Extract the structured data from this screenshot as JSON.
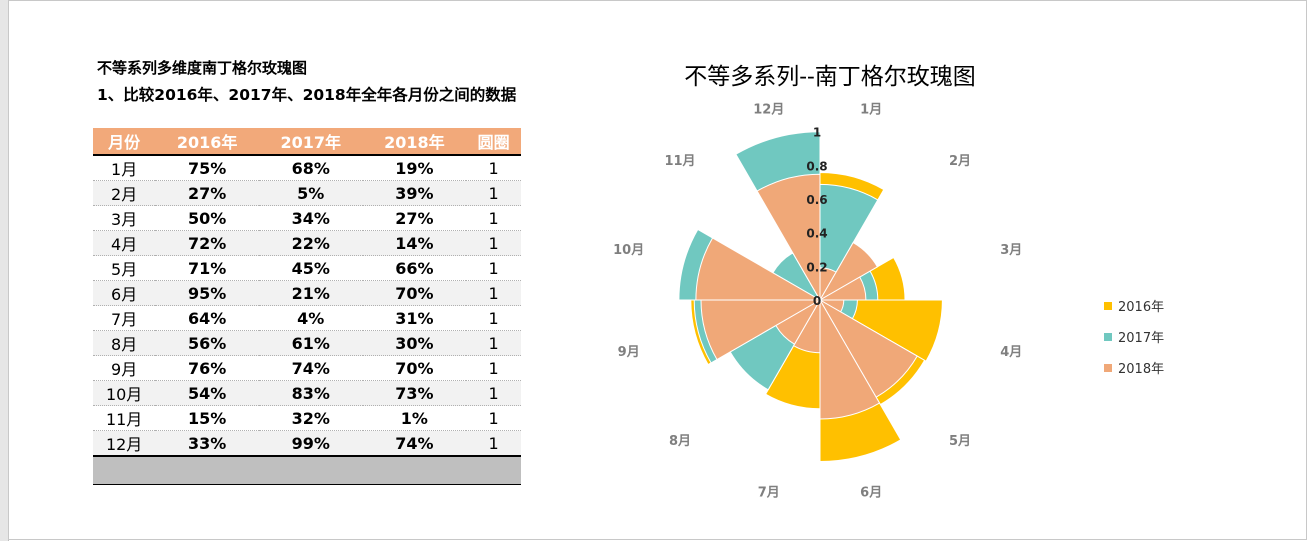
{
  "heading": {
    "line1": "不等系列多维度南丁格尔玫瑰图",
    "line2": "1、比较2016年、2017年、2018年全年各月份之间的数据"
  },
  "table": {
    "headers": [
      "月份",
      "2016年",
      "2017年",
      "2018年",
      "圆圈"
    ],
    "rows": [
      [
        "1月",
        "75%",
        "68%",
        "19%",
        "1"
      ],
      [
        "2月",
        "27%",
        "5%",
        "39%",
        "1"
      ],
      [
        "3月",
        "50%",
        "34%",
        "27%",
        "1"
      ],
      [
        "4月",
        "72%",
        "22%",
        "14%",
        "1"
      ],
      [
        "5月",
        "71%",
        "45%",
        "66%",
        "1"
      ],
      [
        "6月",
        "95%",
        "21%",
        "70%",
        "1"
      ],
      [
        "7月",
        "64%",
        "4%",
        "31%",
        "1"
      ],
      [
        "8月",
        "56%",
        "61%",
        "30%",
        "1"
      ],
      [
        "9月",
        "76%",
        "74%",
        "70%",
        "1"
      ],
      [
        "10月",
        "54%",
        "83%",
        "73%",
        "1"
      ],
      [
        "11月",
        "15%",
        "32%",
        "1%",
        "1"
      ],
      [
        "12月",
        "33%",
        "99%",
        "74%",
        "1"
      ]
    ]
  },
  "chart_data": {
    "type": "rose",
    "title": "不等多系列--南丁格尔玫瑰图",
    "categories": [
      "1月",
      "2月",
      "3月",
      "4月",
      "5月",
      "6月",
      "7月",
      "8月",
      "9月",
      "10月",
      "11月",
      "12月"
    ],
    "series": [
      {
        "name": "2016年",
        "color": "#ffc000",
        "values": [
          0.75,
          0.27,
          0.5,
          0.72,
          0.71,
          0.95,
          0.64,
          0.56,
          0.76,
          0.54,
          0.15,
          0.33
        ]
      },
      {
        "name": "2017年",
        "color": "#70c8c0",
        "values": [
          0.68,
          0.05,
          0.34,
          0.22,
          0.45,
          0.21,
          0.04,
          0.61,
          0.74,
          0.83,
          0.32,
          0.99
        ]
      },
      {
        "name": "2018年",
        "color": "#f0a878",
        "values": [
          0.19,
          0.39,
          0.27,
          0.14,
          0.66,
          0.7,
          0.31,
          0.3,
          0.7,
          0.73,
          0.01,
          0.74
        ]
      }
    ],
    "radial_ticks": [
      "0",
      "0.2",
      "0.4",
      "0.6",
      "0.8",
      "1"
    ],
    "rlim": [
      0,
      1
    ],
    "legend_position": "right"
  }
}
